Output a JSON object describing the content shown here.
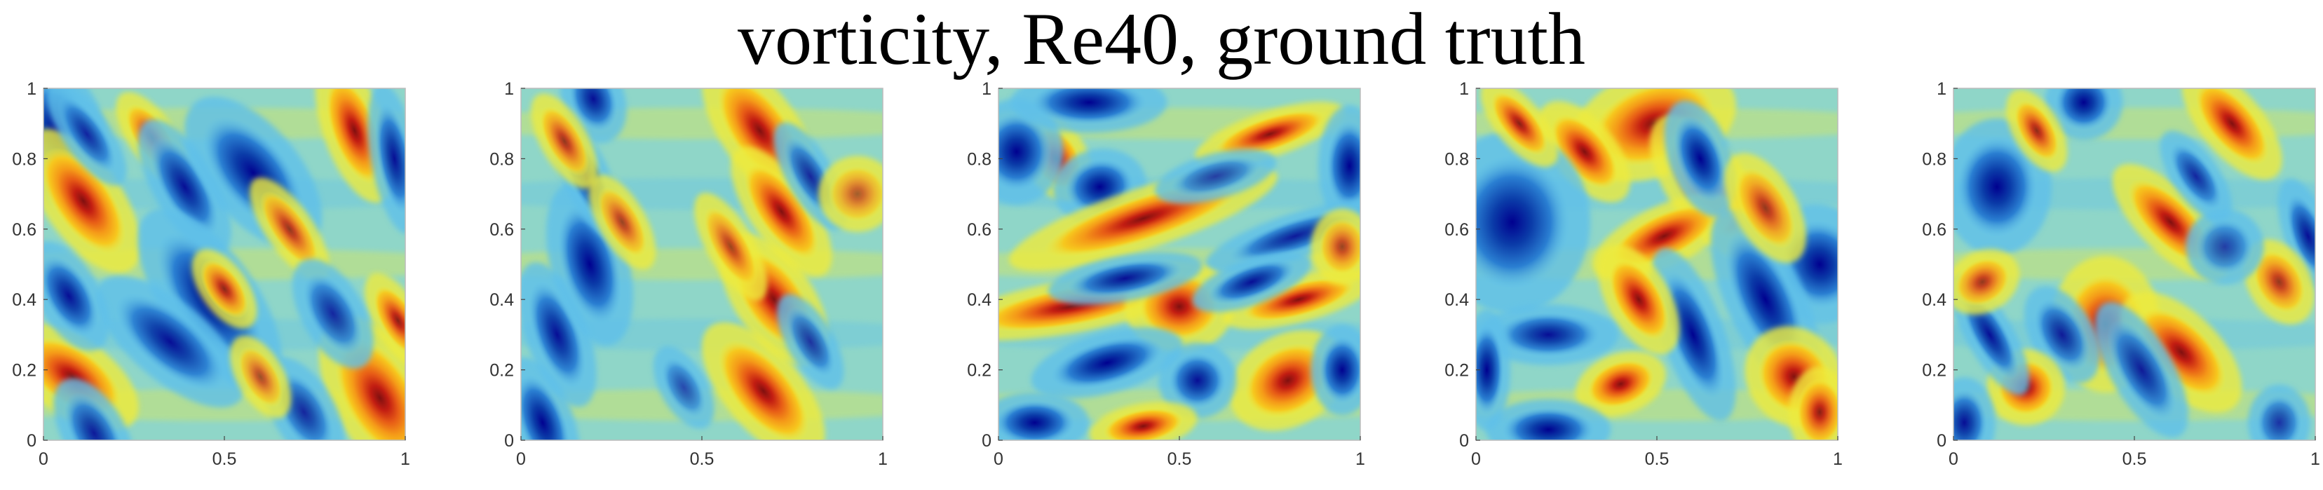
{
  "title": "vorticity, Re40, ground truth",
  "colormap": [
    "#00008f",
    "#0a3ba8",
    "#2a7fd2",
    "#5fc0ea",
    "#8fd6c8",
    "#b5dc8c",
    "#eeeb3e",
    "#f6c81e",
    "#f59a18",
    "#e75c16",
    "#c21d12",
    "#801010"
  ],
  "chart_data": [
    {
      "type": "heatmap",
      "title": "",
      "xlabel": "",
      "ylabel": "",
      "xlim": [
        0,
        1
      ],
      "ylim": [
        0,
        1
      ],
      "xticks": [
        "0",
        "0.5",
        "1"
      ],
      "yticks": [
        "0",
        "0.2",
        "0.4",
        "0.6",
        "0.8",
        "1"
      ],
      "blobs": [
        {
          "x": 0.04,
          "y": 0.88,
          "w": -1.0,
          "rx": 0.06,
          "ry": 0.1,
          "angle": -20
        },
        {
          "x": 0.11,
          "y": 0.68,
          "w": 1.0,
          "rx": 0.05,
          "ry": 0.11,
          "angle": -35
        },
        {
          "x": 0.12,
          "y": 0.87,
          "w": -0.6,
          "rx": 0.03,
          "ry": 0.08,
          "angle": -35
        },
        {
          "x": 0.3,
          "y": 0.86,
          "w": 0.7,
          "rx": 0.03,
          "ry": 0.07,
          "angle": -35
        },
        {
          "x": 0.39,
          "y": 0.72,
          "w": -0.8,
          "rx": 0.04,
          "ry": 0.1,
          "angle": -30
        },
        {
          "x": 0.58,
          "y": 0.76,
          "w": -0.9,
          "rx": 0.06,
          "ry": 0.12,
          "angle": -40
        },
        {
          "x": 0.68,
          "y": 0.6,
          "w": 0.6,
          "rx": 0.03,
          "ry": 0.08,
          "angle": -35
        },
        {
          "x": 0.46,
          "y": 0.4,
          "w": -1.0,
          "rx": 0.06,
          "ry": 0.14,
          "angle": -35
        },
        {
          "x": 0.5,
          "y": 0.43,
          "w": 0.7,
          "rx": 0.03,
          "ry": 0.06,
          "angle": -35
        },
        {
          "x": 0.35,
          "y": 0.28,
          "w": -0.8,
          "rx": 0.05,
          "ry": 0.12,
          "angle": -50
        },
        {
          "x": 0.08,
          "y": 0.18,
          "w": 1.0,
          "rx": 0.05,
          "ry": 0.1,
          "angle": -55
        },
        {
          "x": 0.07,
          "y": 0.41,
          "w": -0.8,
          "rx": 0.04,
          "ry": 0.08,
          "angle": -30
        },
        {
          "x": 0.14,
          "y": 0.02,
          "w": -0.7,
          "rx": 0.04,
          "ry": 0.08,
          "angle": -30
        },
        {
          "x": 0.86,
          "y": 0.88,
          "w": 1.0,
          "rx": 0.04,
          "ry": 0.1,
          "angle": -20
        },
        {
          "x": 0.97,
          "y": 0.8,
          "w": -0.8,
          "rx": 0.03,
          "ry": 0.1,
          "angle": -10
        },
        {
          "x": 0.93,
          "y": 0.12,
          "w": 1.0,
          "rx": 0.06,
          "ry": 0.12,
          "angle": -30
        },
        {
          "x": 0.98,
          "y": 0.34,
          "w": 0.8,
          "rx": 0.03,
          "ry": 0.07,
          "angle": -30
        },
        {
          "x": 0.8,
          "y": 0.36,
          "w": -0.6,
          "rx": 0.04,
          "ry": 0.08,
          "angle": -30
        },
        {
          "x": 0.72,
          "y": 0.08,
          "w": -0.6,
          "rx": 0.04,
          "ry": 0.08,
          "angle": -30
        },
        {
          "x": 0.6,
          "y": 0.18,
          "w": 0.4,
          "rx": 0.03,
          "ry": 0.06,
          "angle": -30
        }
      ]
    },
    {
      "type": "heatmap",
      "title": "",
      "xlabel": "",
      "ylabel": "",
      "xlim": [
        0,
        1
      ],
      "ylim": [
        0,
        1
      ],
      "xticks": [
        "0",
        "0.5",
        "1"
      ],
      "yticks": [
        "0",
        "0.2",
        "0.4",
        "0.6",
        "0.8",
        "1"
      ],
      "blobs": [
        {
          "x": 0.06,
          "y": 0.05,
          "w": -0.9,
          "rx": 0.04,
          "ry": 0.09,
          "angle": -20
        },
        {
          "x": 0.1,
          "y": 0.3,
          "w": -0.8,
          "rx": 0.04,
          "ry": 0.1,
          "angle": -20
        },
        {
          "x": 0.19,
          "y": 0.5,
          "w": -1.0,
          "rx": 0.05,
          "ry": 0.11,
          "angle": -15
        },
        {
          "x": 0.18,
          "y": 0.75,
          "w": -0.7,
          "rx": 0.03,
          "ry": 0.09,
          "angle": -25
        },
        {
          "x": 0.2,
          "y": 0.97,
          "w": -0.8,
          "rx": 0.04,
          "ry": 0.06,
          "angle": -20
        },
        {
          "x": 0.12,
          "y": 0.85,
          "w": 0.6,
          "rx": 0.03,
          "ry": 0.07,
          "angle": -30
        },
        {
          "x": 0.28,
          "y": 0.62,
          "w": 0.5,
          "rx": 0.03,
          "ry": 0.07,
          "angle": -30
        },
        {
          "x": 0.66,
          "y": 0.88,
          "w": 1.0,
          "rx": 0.05,
          "ry": 0.11,
          "angle": -35
        },
        {
          "x": 0.72,
          "y": 0.65,
          "w": 1.0,
          "rx": 0.04,
          "ry": 0.1,
          "angle": -35
        },
        {
          "x": 0.7,
          "y": 0.4,
          "w": 1.0,
          "rx": 0.05,
          "ry": 0.1,
          "angle": -35
        },
        {
          "x": 0.67,
          "y": 0.14,
          "w": 1.0,
          "rx": 0.05,
          "ry": 0.11,
          "angle": -40
        },
        {
          "x": 0.58,
          "y": 0.55,
          "w": 0.5,
          "rx": 0.03,
          "ry": 0.08,
          "angle": -30
        },
        {
          "x": 0.8,
          "y": 0.75,
          "w": -0.6,
          "rx": 0.03,
          "ry": 0.08,
          "angle": -30
        },
        {
          "x": 0.8,
          "y": 0.28,
          "w": -0.5,
          "rx": 0.03,
          "ry": 0.07,
          "angle": -30
        },
        {
          "x": 0.93,
          "y": 0.7,
          "w": 0.3,
          "rx": 0.05,
          "ry": 0.05,
          "angle": 0
        },
        {
          "x": 0.45,
          "y": 0.15,
          "w": -0.3,
          "rx": 0.03,
          "ry": 0.06,
          "angle": -30
        }
      ]
    },
    {
      "type": "heatmap",
      "title": "",
      "xlabel": "",
      "ylabel": "",
      "xlim": [
        0,
        1
      ],
      "ylim": [
        0,
        1
      ],
      "xticks": [
        "0",
        "0.5",
        "1"
      ],
      "yticks": [
        "0",
        "0.2",
        "0.4",
        "0.6",
        "0.8",
        "1"
      ],
      "blobs": [
        {
          "x": 0.16,
          "y": 0.8,
          "w": 1.0,
          "rx": 0.04,
          "ry": 0.06,
          "angle": -30
        },
        {
          "x": 0.05,
          "y": 0.82,
          "w": -1.0,
          "rx": 0.06,
          "ry": 0.07,
          "angle": 0
        },
        {
          "x": 0.28,
          "y": 0.72,
          "w": -1.0,
          "rx": 0.06,
          "ry": 0.05,
          "angle": -10
        },
        {
          "x": 0.25,
          "y": 0.96,
          "w": -1.0,
          "rx": 0.1,
          "ry": 0.04,
          "angle": 0
        },
        {
          "x": 0.4,
          "y": 0.63,
          "w": 1.0,
          "rx": 0.18,
          "ry": 0.04,
          "angle": -18
        },
        {
          "x": 0.75,
          "y": 0.87,
          "w": 0.9,
          "rx": 0.1,
          "ry": 0.03,
          "angle": -18
        },
        {
          "x": 0.97,
          "y": 0.78,
          "w": -1.0,
          "rx": 0.04,
          "ry": 0.08,
          "angle": 0
        },
        {
          "x": 0.82,
          "y": 0.58,
          "w": -0.7,
          "rx": 0.12,
          "ry": 0.03,
          "angle": -18
        },
        {
          "x": 0.2,
          "y": 0.38,
          "w": 1.0,
          "rx": 0.16,
          "ry": 0.035,
          "angle": -10
        },
        {
          "x": 0.5,
          "y": 0.38,
          "w": 1.0,
          "rx": 0.07,
          "ry": 0.06,
          "angle": 0
        },
        {
          "x": 0.83,
          "y": 0.4,
          "w": 1.0,
          "rx": 0.1,
          "ry": 0.03,
          "angle": -15
        },
        {
          "x": 0.35,
          "y": 0.46,
          "w": -0.8,
          "rx": 0.1,
          "ry": 0.03,
          "angle": -10
        },
        {
          "x": 0.7,
          "y": 0.45,
          "w": -0.8,
          "rx": 0.08,
          "ry": 0.03,
          "angle": -20
        },
        {
          "x": 0.3,
          "y": 0.22,
          "w": -1.0,
          "rx": 0.1,
          "ry": 0.04,
          "angle": -15
        },
        {
          "x": 0.8,
          "y": 0.17,
          "w": 1.0,
          "rx": 0.08,
          "ry": 0.06,
          "angle": -30
        },
        {
          "x": 0.55,
          "y": 0.17,
          "w": -0.8,
          "rx": 0.05,
          "ry": 0.05,
          "angle": 0
        },
        {
          "x": 0.1,
          "y": 0.05,
          "w": -1.0,
          "rx": 0.07,
          "ry": 0.04,
          "angle": 0
        },
        {
          "x": 0.4,
          "y": 0.04,
          "w": 1.0,
          "rx": 0.07,
          "ry": 0.03,
          "angle": -10
        },
        {
          "x": 0.6,
          "y": 0.75,
          "w": -0.4,
          "rx": 0.08,
          "ry": 0.03,
          "angle": -15
        },
        {
          "x": 0.95,
          "y": 0.2,
          "w": -0.9,
          "rx": 0.04,
          "ry": 0.06,
          "angle": 0
        },
        {
          "x": 0.95,
          "y": 0.55,
          "w": 0.5,
          "rx": 0.04,
          "ry": 0.05,
          "angle": 0
        }
      ]
    },
    {
      "type": "heatmap",
      "title": "",
      "xlabel": "",
      "ylabel": "",
      "xlim": [
        0,
        1
      ],
      "ylim": [
        0,
        1
      ],
      "xticks": [
        "0",
        "0.5",
        "1"
      ],
      "yticks": [
        "0",
        "0.2",
        "0.4",
        "0.6",
        "0.8",
        "1"
      ],
      "blobs": [
        {
          "x": 0.49,
          "y": 0.9,
          "w": 1.0,
          "rx": 0.11,
          "ry": 0.07,
          "angle": -20
        },
        {
          "x": 0.3,
          "y": 0.82,
          "w": 1.0,
          "rx": 0.04,
          "ry": 0.08,
          "angle": -40
        },
        {
          "x": 0.64,
          "y": 0.72,
          "w": 1.0,
          "rx": 0.05,
          "ry": 0.11,
          "angle": -35
        },
        {
          "x": 0.52,
          "y": 0.58,
          "w": 1.0,
          "rx": 0.1,
          "ry": 0.04,
          "angle": -25
        },
        {
          "x": 0.62,
          "y": 0.8,
          "w": -1.0,
          "rx": 0.04,
          "ry": 0.08,
          "angle": -20
        },
        {
          "x": 0.09,
          "y": 0.6,
          "w": 1.0,
          "rx": 0.04,
          "ry": 0.05,
          "angle": 0
        },
        {
          "x": 0.1,
          "y": 0.62,
          "w": -1.0,
          "rx": 0.1,
          "ry": 0.12,
          "angle": 0
        },
        {
          "x": 0.95,
          "y": 0.5,
          "w": -1.0,
          "rx": 0.07,
          "ry": 0.08,
          "angle": -20
        },
        {
          "x": 0.8,
          "y": 0.4,
          "w": -1.0,
          "rx": 0.05,
          "ry": 0.13,
          "angle": -25
        },
        {
          "x": 0.8,
          "y": 0.66,
          "w": 0.6,
          "rx": 0.04,
          "ry": 0.08,
          "angle": -30
        },
        {
          "x": 0.6,
          "y": 0.3,
          "w": -0.9,
          "rx": 0.04,
          "ry": 0.12,
          "angle": -20
        },
        {
          "x": 0.45,
          "y": 0.4,
          "w": 1.0,
          "rx": 0.04,
          "ry": 0.08,
          "angle": -30
        },
        {
          "x": 0.4,
          "y": 0.16,
          "w": 1.0,
          "rx": 0.06,
          "ry": 0.04,
          "angle": -20
        },
        {
          "x": 0.88,
          "y": 0.18,
          "w": 1.0,
          "rx": 0.06,
          "ry": 0.07,
          "angle": -40
        },
        {
          "x": 0.2,
          "y": 0.3,
          "w": -0.8,
          "rx": 0.09,
          "ry": 0.04,
          "angle": 0
        },
        {
          "x": 0.2,
          "y": 0.03,
          "w": -1.0,
          "rx": 0.08,
          "ry": 0.04,
          "angle": 0
        },
        {
          "x": 0.03,
          "y": 0.2,
          "w": -1.0,
          "rx": 0.03,
          "ry": 0.08,
          "angle": 0
        },
        {
          "x": 0.12,
          "y": 0.9,
          "w": 0.8,
          "rx": 0.03,
          "ry": 0.07,
          "angle": -40
        },
        {
          "x": 0.95,
          "y": 0.08,
          "w": 0.8,
          "rx": 0.04,
          "ry": 0.06,
          "angle": 0
        }
      ]
    },
    {
      "type": "heatmap",
      "title": "",
      "xlabel": "",
      "ylabel": "",
      "xlim": [
        0,
        1
      ],
      "ylim": [
        0,
        1
      ],
      "xticks": [
        "0",
        "0.5",
        "1"
      ],
      "yticks": [
        "0",
        "0.2",
        "0.4",
        "0.6",
        "0.8",
        "1"
      ],
      "blobs": [
        {
          "x": 0.12,
          "y": 0.72,
          "w": -1.0,
          "rx": 0.07,
          "ry": 0.09,
          "angle": 0
        },
        {
          "x": 0.36,
          "y": 0.96,
          "w": -1.0,
          "rx": 0.05,
          "ry": 0.05,
          "angle": 0
        },
        {
          "x": 0.23,
          "y": 0.88,
          "w": 0.7,
          "rx": 0.03,
          "ry": 0.06,
          "angle": -30
        },
        {
          "x": 0.77,
          "y": 0.9,
          "w": 1.0,
          "rx": 0.04,
          "ry": 0.09,
          "angle": -40
        },
        {
          "x": 0.6,
          "y": 0.62,
          "w": 1.0,
          "rx": 0.04,
          "ry": 0.1,
          "angle": -45
        },
        {
          "x": 0.67,
          "y": 0.75,
          "w": -0.6,
          "rx": 0.03,
          "ry": 0.07,
          "angle": -35
        },
        {
          "x": 0.42,
          "y": 0.33,
          "w": 1.0,
          "rx": 0.07,
          "ry": 0.09,
          "angle": 0
        },
        {
          "x": 0.63,
          "y": 0.25,
          "w": 1.0,
          "rx": 0.05,
          "ry": 0.1,
          "angle": -45
        },
        {
          "x": 0.52,
          "y": 0.2,
          "w": -0.7,
          "rx": 0.04,
          "ry": 0.1,
          "angle": -30
        },
        {
          "x": 0.3,
          "y": 0.3,
          "w": -0.7,
          "rx": 0.04,
          "ry": 0.07,
          "angle": -30
        },
        {
          "x": 0.2,
          "y": 0.15,
          "w": 1.0,
          "rx": 0.05,
          "ry": 0.05,
          "angle": 0
        },
        {
          "x": 0.1,
          "y": 0.3,
          "w": -0.8,
          "rx": 0.03,
          "ry": 0.09,
          "angle": -30
        },
        {
          "x": 0.03,
          "y": 0.05,
          "w": -0.8,
          "rx": 0.04,
          "ry": 0.06,
          "angle": 0
        },
        {
          "x": 0.08,
          "y": 0.45,
          "w": 0.6,
          "rx": 0.05,
          "ry": 0.04,
          "angle": -30
        },
        {
          "x": 0.98,
          "y": 0.58,
          "w": -0.8,
          "rx": 0.03,
          "ry": 0.08,
          "angle": -20
        },
        {
          "x": 0.9,
          "y": 0.45,
          "w": 0.6,
          "rx": 0.04,
          "ry": 0.06,
          "angle": -30
        },
        {
          "x": 0.9,
          "y": 0.05,
          "w": -0.5,
          "rx": 0.04,
          "ry": 0.05,
          "angle": 0
        },
        {
          "x": 0.75,
          "y": 0.55,
          "w": -0.4,
          "rx": 0.05,
          "ry": 0.05,
          "angle": 0
        }
      ]
    }
  ]
}
